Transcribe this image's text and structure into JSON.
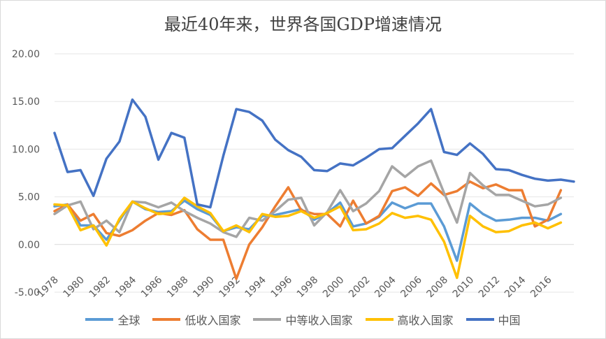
{
  "chart_data": {
    "type": "line",
    "title": "最近40年来，世界各国GDP增速情况",
    "xlabel": "",
    "ylabel": "",
    "ylim": [
      -5,
      20
    ],
    "yticks": [
      "20.00",
      "15.00",
      "10.00",
      "5.00",
      "0.00",
      "-5.00"
    ],
    "grid": true,
    "legend_position": "bottom",
    "x": [
      1978,
      1979,
      1980,
      1981,
      1982,
      1983,
      1984,
      1985,
      1986,
      1987,
      1988,
      1989,
      1990,
      1991,
      1992,
      1993,
      1994,
      1995,
      1996,
      1997,
      1998,
      1999,
      2000,
      2001,
      2002,
      2003,
      2004,
      2005,
      2006,
      2007,
      2008,
      2009,
      2010,
      2011,
      2012,
      2013,
      2014,
      2015,
      2016,
      2017,
      2018
    ],
    "xtick_labels": [
      "1978",
      "1980",
      "1982",
      "1984",
      "1986",
      "1988",
      "1990",
      "1992",
      "1994",
      "1996",
      "1998",
      "2000",
      "2002",
      "2004",
      "2006",
      "2008",
      "2010",
      "2012",
      "2014",
      "2016"
    ],
    "series": [
      {
        "name": "全球",
        "color": "#5b9bd5",
        "values": [
          4.0,
          4.2,
          2.0,
          2.0,
          0.5,
          2.5,
          4.5,
          3.7,
          3.4,
          3.5,
          4.6,
          3.7,
          3.1,
          1.4,
          1.8,
          1.6,
          3.0,
          3.1,
          3.4,
          3.7,
          2.6,
          3.3,
          4.4,
          1.9,
          2.2,
          2.9,
          4.4,
          3.8,
          4.3,
          4.3,
          1.9,
          -1.7,
          4.3,
          3.2,
          2.5,
          2.6,
          2.8,
          2.8,
          2.5,
          3.2,
          null
        ]
      },
      {
        "name": "低收入国家",
        "color": "#ed7d31",
        "values": [
          3.5,
          4.2,
          2.5,
          3.2,
          1.2,
          0.9,
          1.5,
          2.5,
          3.3,
          3.1,
          3.6,
          1.6,
          0.5,
          0.5,
          -3.6,
          0.0,
          1.8,
          4.0,
          6.0,
          3.6,
          3.2,
          3.2,
          1.9,
          4.6,
          2.2,
          3.0,
          5.6,
          6.0,
          5.1,
          6.4,
          5.2,
          5.6,
          6.6,
          5.9,
          6.3,
          5.7,
          5.7,
          1.9,
          2.6,
          5.7,
          null
        ]
      },
      {
        "name": "中等收入国家",
        "color": "#a5a5a5",
        "values": [
          3.2,
          4.1,
          4.5,
          1.6,
          2.5,
          1.3,
          4.5,
          4.4,
          3.9,
          4.4,
          3.5,
          2.8,
          2.2,
          1.3,
          0.8,
          2.8,
          2.5,
          3.5,
          4.7,
          4.9,
          2.0,
          3.4,
          5.7,
          3.5,
          4.3,
          5.6,
          8.2,
          7.1,
          8.2,
          8.8,
          5.4,
          2.3,
          7.5,
          6.2,
          5.2,
          5.2,
          4.6,
          4.0,
          4.2,
          4.9,
          null
        ]
      },
      {
        "name": "高收入国家",
        "color": "#ffc000",
        "values": [
          4.2,
          4.1,
          1.5,
          2.0,
          -0.1,
          2.7,
          4.5,
          3.8,
          3.2,
          3.3,
          4.9,
          4.0,
          3.3,
          1.4,
          2.0,
          1.3,
          3.2,
          2.9,
          3.0,
          3.5,
          2.8,
          3.3,
          4.0,
          1.5,
          1.6,
          2.2,
          3.3,
          2.8,
          3.0,
          2.6,
          0.3,
          -3.5,
          3.0,
          1.9,
          1.3,
          1.4,
          2.0,
          2.3,
          1.7,
          2.3,
          null
        ]
      },
      {
        "name": "中国",
        "color": "#4472c4",
        "values": [
          11.7,
          7.6,
          7.8,
          5.1,
          9.0,
          10.8,
          15.2,
          13.4,
          8.9,
          11.7,
          11.2,
          4.2,
          3.9,
          9.3,
          14.2,
          13.9,
          13.0,
          11.0,
          9.9,
          9.2,
          7.8,
          7.7,
          8.5,
          8.3,
          9.1,
          10.0,
          10.1,
          11.4,
          12.7,
          14.2,
          9.7,
          9.4,
          10.6,
          9.5,
          7.9,
          7.8,
          7.3,
          6.9,
          6.7,
          6.8,
          6.6
        ]
      }
    ]
  }
}
